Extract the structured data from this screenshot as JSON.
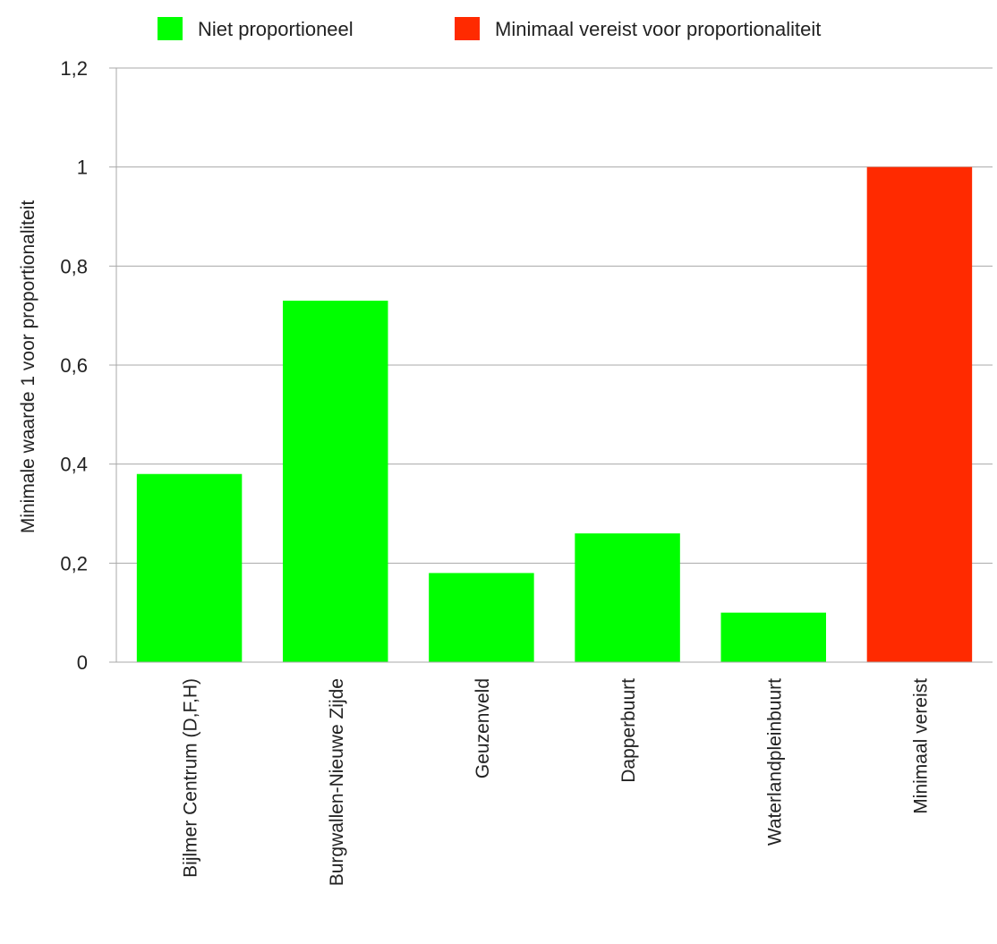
{
  "chart_data": {
    "type": "bar",
    "title": "",
    "xlabel": "",
    "ylabel": "Minimale waarde 1 voor proportionaliteit",
    "ylim": [
      0,
      1.2
    ],
    "yticks": [
      {
        "value": 0,
        "label": "0"
      },
      {
        "value": 0.2,
        "label": "0,2"
      },
      {
        "value": 0.4,
        "label": "0,4"
      },
      {
        "value": 0.6,
        "label": "0,6"
      },
      {
        "value": 0.8,
        "label": "0,8"
      },
      {
        "value": 1,
        "label": "1"
      },
      {
        "value": 1.2,
        "label": "1,2"
      }
    ],
    "grid": true,
    "legend_position": "top-center",
    "categories": [
      "Bijlmer Centrum (D,F,H)",
      "Burgwallen-Nieuwe Zijde",
      "Geuzenveld",
      "Dapperbuurt",
      "Waterlandpleinbuurt",
      "Minimaal vereist"
    ],
    "series": [
      {
        "name": "Niet proportioneel",
        "color": "#00ff00",
        "values": [
          0.38,
          0.73,
          0.18,
          0.26,
          0.1,
          null
        ]
      },
      {
        "name": "Minimaal vereist voor proportionaliteit",
        "color": "#ff2a00",
        "values": [
          null,
          null,
          null,
          null,
          null,
          1.0
        ]
      }
    ]
  }
}
